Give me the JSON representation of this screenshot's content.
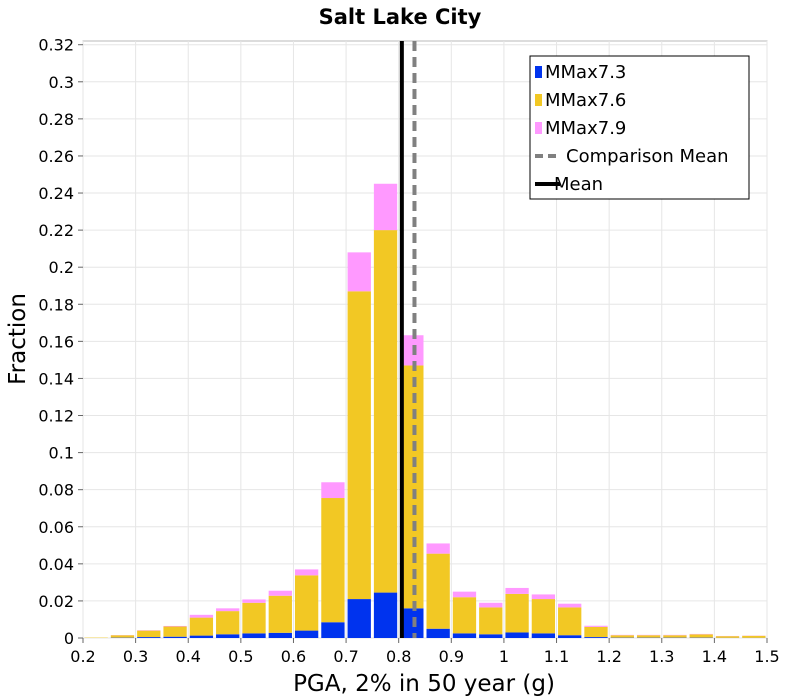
{
  "chart_data": {
    "type": "bar",
    "stacked": true,
    "title": "Salt Lake City",
    "xlabel": "PGA, 2% in 50 year (g)",
    "ylabel": "Fraction",
    "xlim": [
      0.2,
      1.5
    ],
    "ylim": [
      0,
      0.322
    ],
    "xticks": [
      0.2,
      0.3,
      0.4,
      0.5,
      0.6,
      0.7,
      0.8,
      0.9,
      1.0,
      1.1,
      1.2,
      1.3,
      1.4,
      1.5
    ],
    "xtick_labels": [
      "0.2",
      "0.3",
      "0.4",
      "0.5",
      "0.6",
      "0.7",
      "0.8",
      "0.9",
      "1",
      "1.1",
      "1.2",
      "1.3",
      "1.4",
      "1.5"
    ],
    "yticks": [
      0,
      0.02,
      0.04,
      0.06,
      0.08,
      0.1,
      0.12,
      0.14,
      0.16,
      0.18,
      0.2,
      0.22,
      0.24,
      0.26,
      0.28,
      0.3,
      0.32
    ],
    "ytick_labels": [
      "0",
      "0.02",
      "0.04",
      "0.06",
      "0.08",
      "0.1",
      "0.12",
      "0.14",
      "0.16",
      "0.18",
      "0.2",
      "0.22",
      "0.24",
      "0.26",
      "0.28",
      "0.3",
      "0.32"
    ],
    "grid": true,
    "legend_position": "top-right",
    "bin_width": 0.05,
    "bin_starts": [
      0.2,
      0.25,
      0.3,
      0.35,
      0.4,
      0.45,
      0.5,
      0.55,
      0.6,
      0.65,
      0.7,
      0.75,
      0.8,
      0.85,
      0.9,
      0.95,
      1.0,
      1.05,
      1.1,
      1.15,
      1.2,
      1.25,
      1.3,
      1.35,
      1.4,
      1.45
    ],
    "series": [
      {
        "name": "MMax7.3",
        "color": "#0033ee",
        "values": [
          0.0,
          0.0002,
          0.0005,
          0.0007,
          0.0013,
          0.002,
          0.0025,
          0.0028,
          0.004,
          0.0085,
          0.021,
          0.0245,
          0.016,
          0.005,
          0.0025,
          0.002,
          0.003,
          0.0025,
          0.0015,
          0.0005,
          0.0002,
          0.0002,
          0.0002,
          0.0002,
          0.0001,
          0.0001
        ]
      },
      {
        "name": "MMax7.6",
        "color": "#f2c824",
        "values": [
          0.0002,
          0.0013,
          0.0035,
          0.0055,
          0.0097,
          0.0125,
          0.0165,
          0.02,
          0.0298,
          0.067,
          0.166,
          0.1955,
          0.131,
          0.0405,
          0.0195,
          0.0145,
          0.0208,
          0.0185,
          0.015,
          0.0055,
          0.0013,
          0.0013,
          0.0013,
          0.0018,
          0.0009,
          0.0011
        ]
      },
      {
        "name": "MMax7.9",
        "color": "#ff99ff",
        "values": [
          0.0,
          0.0001,
          0.0002,
          0.0003,
          0.0015,
          0.0015,
          0.0018,
          0.0027,
          0.0032,
          0.0085,
          0.021,
          0.025,
          0.0163,
          0.0055,
          0.003,
          0.0025,
          0.0032,
          0.0025,
          0.002,
          0.0006,
          0.0002,
          0.0002,
          0.0002,
          0.0002,
          0.0001,
          0.0001
        ]
      }
    ],
    "lines": [
      {
        "name": "Comparison Mean",
        "x": 0.83,
        "color": "#808080",
        "style": "dashed"
      },
      {
        "name": "Mean",
        "x": 0.806,
        "color": "#000000",
        "style": "solid"
      }
    ],
    "legend": [
      "MMax7.3",
      "MMax7.6",
      "MMax7.9",
      "Comparison Mean",
      "Mean"
    ]
  }
}
